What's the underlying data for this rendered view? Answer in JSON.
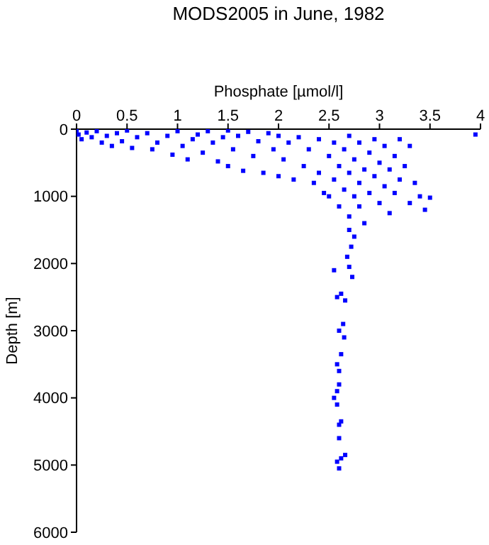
{
  "chart_data": {
    "type": "scatter",
    "title": "MODS2005 in June, 1982",
    "xlabel": "Phosphate [µmol/l]",
    "ylabel": "Depth [m]",
    "xlim": [
      0,
      4
    ],
    "xticks": [
      0,
      0.5,
      1,
      1.5,
      2,
      2.5,
      3,
      3.5,
      4
    ],
    "ylim": [
      6000,
      0
    ],
    "yticks": [
      0,
      1000,
      2000,
      3000,
      4000,
      5000,
      6000
    ],
    "grid": false,
    "legend": false,
    "marker": "square",
    "series": [
      {
        "color": "#0000ff",
        "x": [
          0.0,
          0.02,
          0.05,
          0.1,
          0.15,
          0.2,
          0.25,
          0.3,
          0.35,
          0.4,
          0.45,
          0.5,
          0.55,
          0.6,
          0.7,
          0.75,
          0.8,
          0.9,
          0.95,
          1.0,
          1.05,
          1.1,
          1.15,
          1.2,
          1.25,
          1.3,
          1.35,
          1.4,
          1.45,
          1.5,
          1.5,
          1.55,
          1.6,
          1.65,
          1.7,
          1.75,
          1.8,
          1.85,
          1.9,
          1.95,
          2.0,
          2.0,
          2.05,
          2.1,
          2.15,
          2.2,
          2.25,
          2.3,
          2.35,
          2.4,
          2.4,
          2.45,
          2.5,
          2.5,
          2.55,
          2.55,
          2.6,
          2.6,
          2.65,
          2.65,
          2.7,
          2.7,
          2.7,
          2.75,
          2.75,
          2.8,
          2.8,
          2.8,
          2.85,
          2.85,
          2.9,
          2.9,
          2.95,
          2.95,
          3.0,
          3.0,
          3.05,
          3.05,
          3.1,
          3.1,
          3.15,
          3.15,
          3.2,
          3.2,
          3.25,
          3.3,
          3.3,
          3.35,
          3.4,
          3.45,
          3.5,
          3.95,
          2.7,
          2.75,
          2.72,
          2.68,
          2.7,
          2.55,
          2.73,
          2.58,
          2.62,
          2.66,
          2.64,
          2.6,
          2.65,
          2.58,
          2.6,
          2.62,
          2.55,
          2.58,
          2.6,
          2.58,
          2.6,
          2.62,
          2.6,
          2.58,
          2.62,
          2.66,
          2.6
        ],
        "values": [
          20,
          80,
          150,
          50,
          120,
          30,
          200,
          100,
          250,
          60,
          180,
          20,
          280,
          120,
          60,
          300,
          200,
          100,
          380,
          30,
          250,
          450,
          150,
          80,
          350,
          30,
          200,
          480,
          120,
          20,
          550,
          300,
          100,
          620,
          40,
          400,
          180,
          650,
          60,
          300,
          100,
          700,
          450,
          200,
          750,
          120,
          550,
          300,
          800,
          150,
          650,
          950,
          400,
          1000,
          200,
          750,
          550,
          1150,
          300,
          900,
          100,
          650,
          1300,
          450,
          1000,
          200,
          800,
          1150,
          600,
          1400,
          350,
          950,
          150,
          700,
          500,
          1100,
          250,
          850,
          600,
          1250,
          400,
          950,
          150,
          750,
          550,
          1100,
          250,
          800,
          1000,
          1200,
          1020,
          80,
          1500,
          1600,
          1750,
          1900,
          2050,
          2100,
          2200,
          2500,
          2450,
          2550,
          2900,
          3000,
          3100,
          3500,
          3600,
          3350,
          4000,
          3900,
          3800,
          4100,
          4400,
          4350,
          4600,
          4950,
          4900,
          4850,
          5050
        ]
      }
    ]
  }
}
